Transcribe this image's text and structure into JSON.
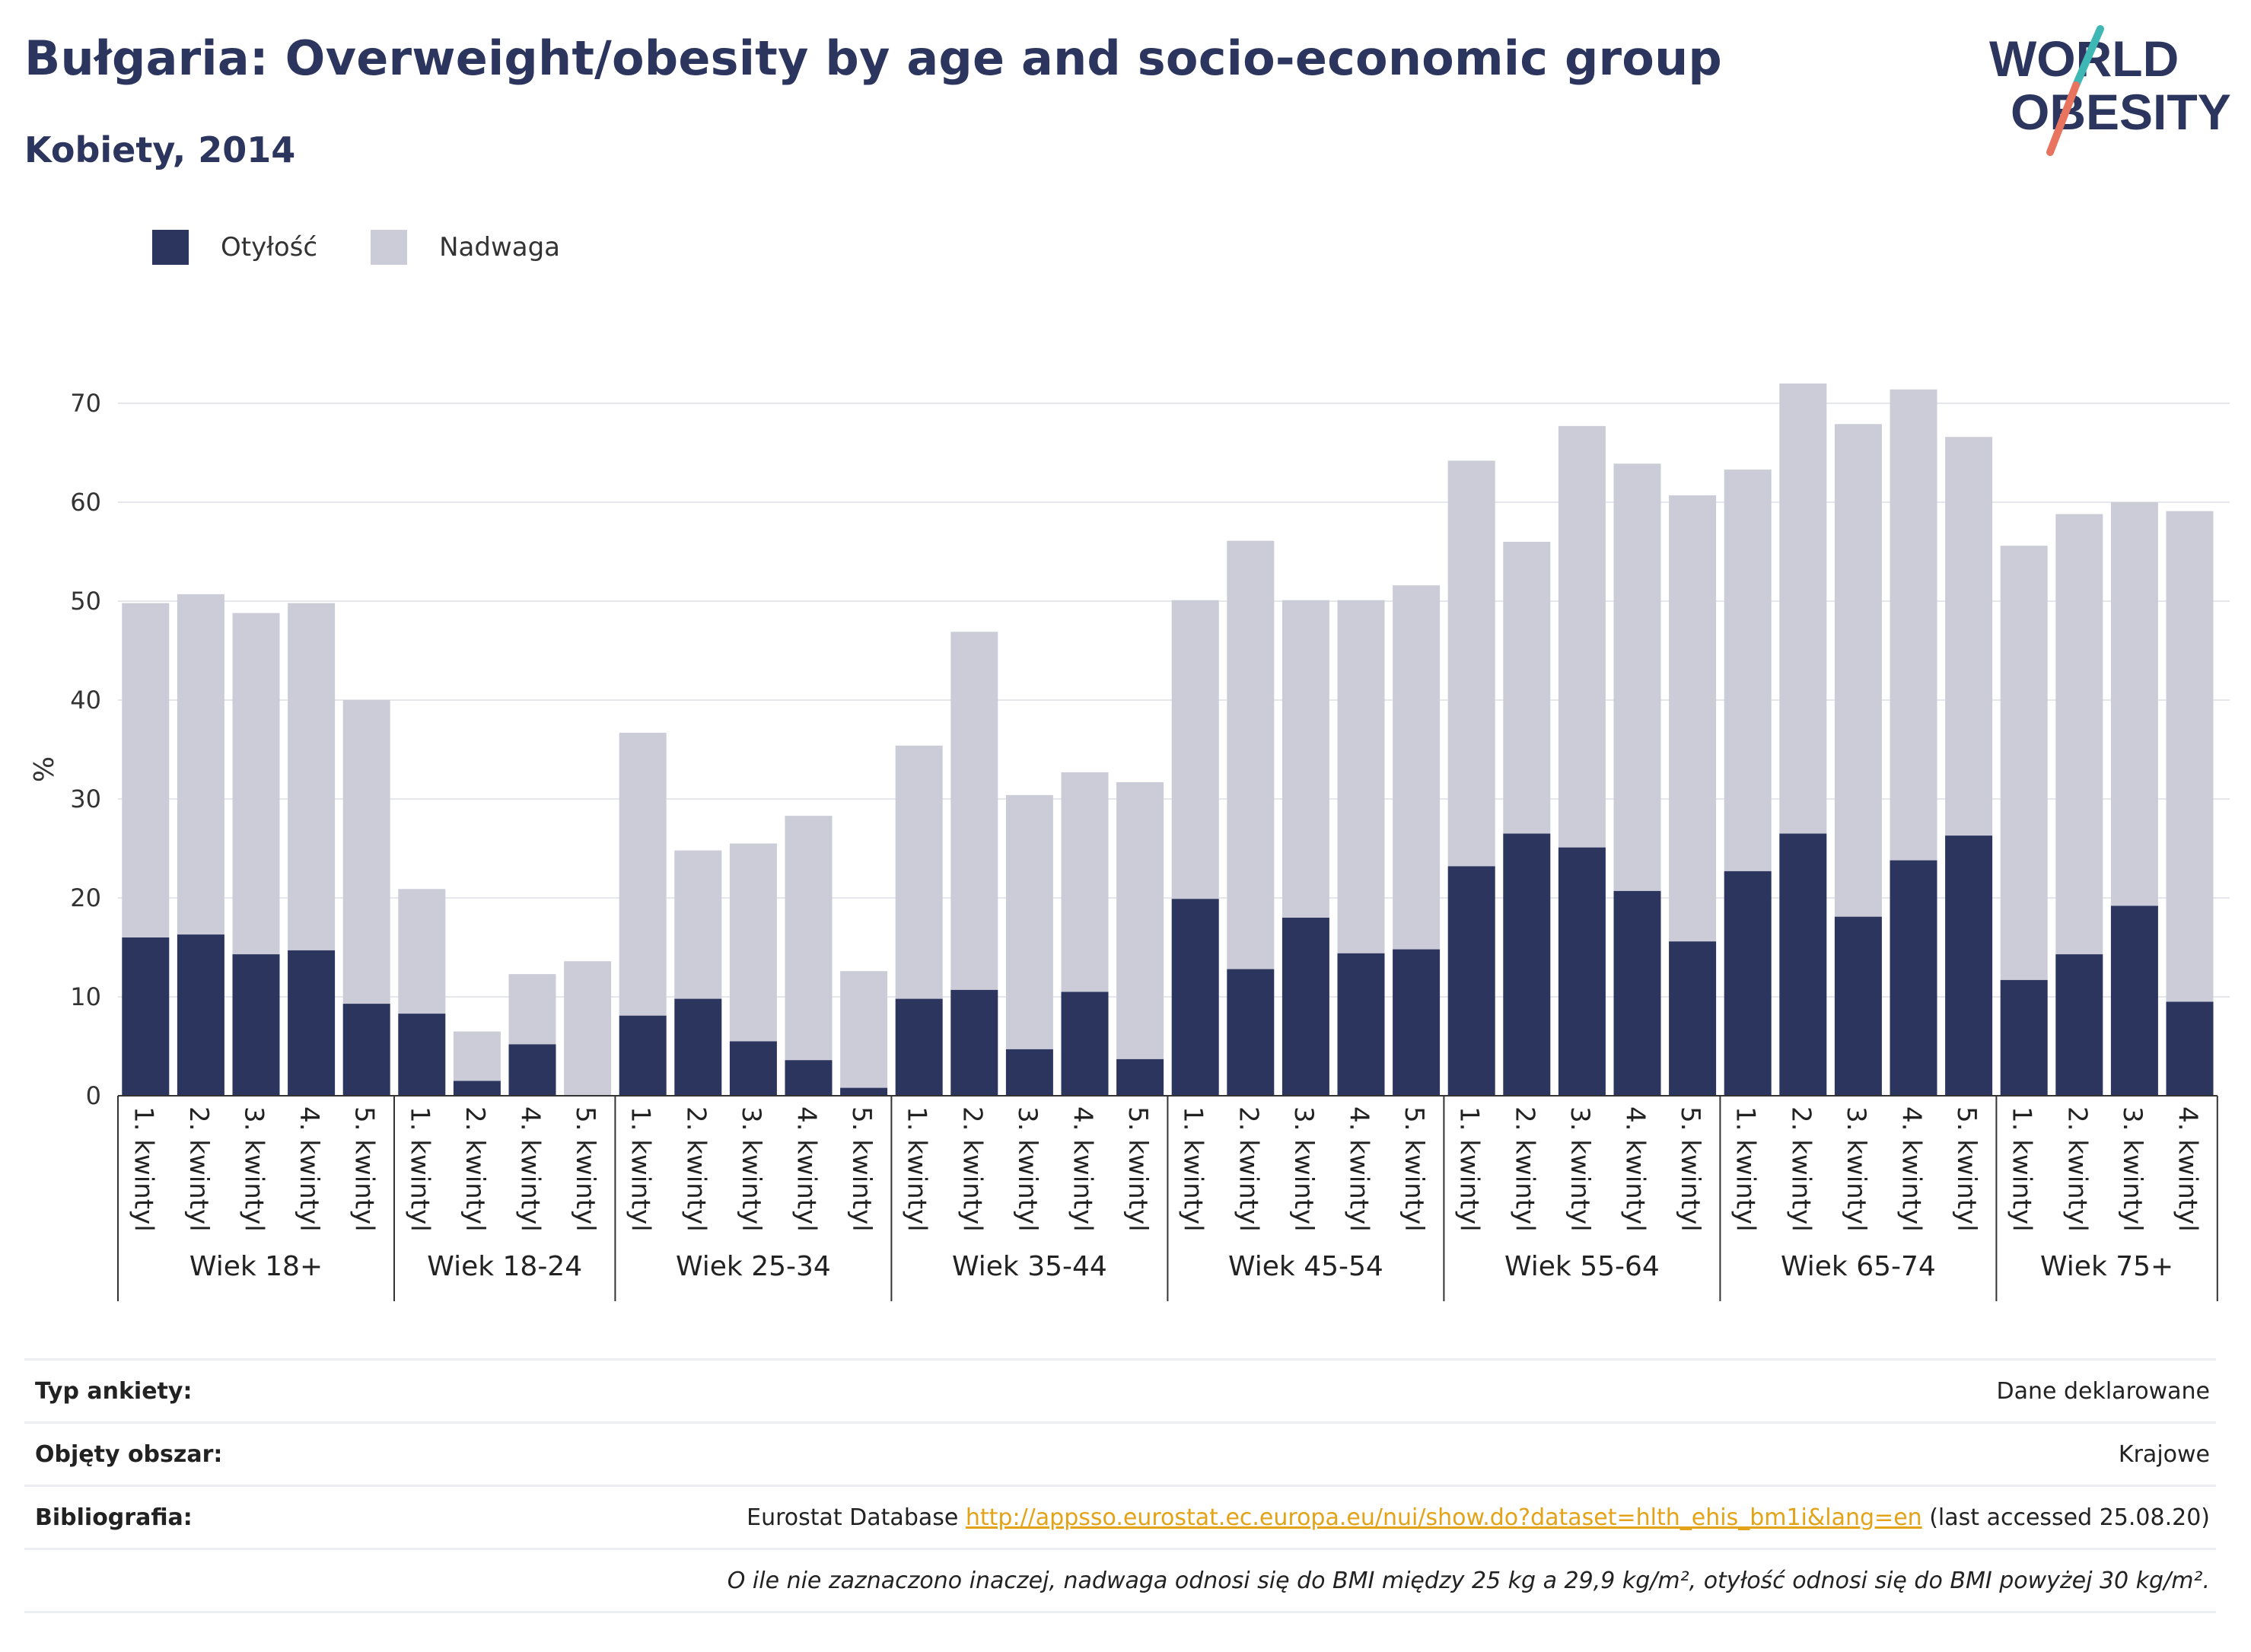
{
  "header": {
    "title": "Bułgaria: Overweight/obesity by age and socio-economic group",
    "subtitle": "Kobiety, 2014"
  },
  "logo": {
    "line1": "WORLD",
    "line2": "OBESITY"
  },
  "colors": {
    "obesity": "#2b355e",
    "overweight": "#cbccd7",
    "text": "#2b355e",
    "grid": "#e6e7ec",
    "link": "#e3a319",
    "logo_teal": "#3fb8b5",
    "logo_coral": "#e8735f"
  },
  "legend": {
    "items": [
      {
        "label": "Otyłość",
        "color": "#2b355e"
      },
      {
        "label": "Nadwaga",
        "color": "#cbccd7"
      }
    ]
  },
  "chart_data": {
    "type": "bar",
    "stacked": true,
    "ylabel": "%",
    "ylim": [
      0,
      75
    ],
    "yticks": [
      0,
      10,
      20,
      30,
      40,
      50,
      60,
      70
    ],
    "grid": true,
    "legend_position": "top-left",
    "groups": [
      {
        "label": "Wiek 18+",
        "categories": [
          "1. kwintyl",
          "2. kwintyl",
          "3. kwintyl",
          "4. kwintyl",
          "5. kwintyl"
        ],
        "obesity": [
          16.0,
          16.3,
          14.3,
          14.7,
          9.3
        ],
        "total": [
          49.8,
          50.7,
          48.8,
          49.8,
          40.0
        ]
      },
      {
        "label": "Wiek 18-24",
        "categories": [
          "1. kwintyl",
          "2. kwintyl",
          "4. kwintyl",
          "5. kwintyl"
        ],
        "obesity": [
          8.3,
          1.5,
          5.2,
          0.0
        ],
        "total": [
          20.9,
          6.5,
          12.3,
          13.6
        ]
      },
      {
        "label": "Wiek 25-34",
        "categories": [
          "1. kwintyl",
          "2. kwintyl",
          "3. kwintyl",
          "4. kwintyl",
          "5. kwintyl"
        ],
        "obesity": [
          8.1,
          9.8,
          5.5,
          3.6,
          0.8
        ],
        "total": [
          36.7,
          24.8,
          25.5,
          28.3,
          12.6
        ]
      },
      {
        "label": "Wiek 35-44",
        "categories": [
          "1. kwintyl",
          "2. kwintyl",
          "3. kwintyl",
          "4. kwintyl",
          "5. kwintyl"
        ],
        "obesity": [
          9.8,
          10.7,
          4.7,
          10.5,
          3.7
        ],
        "total": [
          35.4,
          46.9,
          30.4,
          32.7,
          31.7
        ]
      },
      {
        "label": "Wiek 45-54",
        "categories": [
          "1. kwintyl",
          "2. kwintyl",
          "3. kwintyl",
          "4. kwintyl",
          "5. kwintyl"
        ],
        "obesity": [
          19.9,
          12.8,
          18.0,
          14.4,
          14.8
        ],
        "total": [
          50.1,
          56.1,
          50.1,
          50.1,
          51.6
        ]
      },
      {
        "label": "Wiek 55-64",
        "categories": [
          "1. kwintyl",
          "2. kwintyl",
          "3. kwintyl",
          "4. kwintyl",
          "5. kwintyl"
        ],
        "obesity": [
          23.2,
          26.5,
          25.1,
          20.7,
          15.6
        ],
        "total": [
          64.2,
          56.0,
          67.7,
          63.9,
          60.7
        ]
      },
      {
        "label": "Wiek 65-74",
        "categories": [
          "1. kwintyl",
          "2. kwintyl",
          "3. kwintyl",
          "4. kwintyl",
          "5. kwintyl"
        ],
        "obesity": [
          22.7,
          26.5,
          18.1,
          23.8,
          26.3
        ],
        "total": [
          63.3,
          72.0,
          67.9,
          71.4,
          66.6
        ]
      },
      {
        "label": "Wiek 75+",
        "categories": [
          "1. kwintyl",
          "2. kwintyl",
          "3. kwintyl",
          "4. kwintyl"
        ],
        "obesity": [
          11.7,
          14.3,
          19.2,
          9.5
        ],
        "total": [
          55.6,
          58.8,
          60.0,
          59.1
        ]
      }
    ]
  },
  "meta": {
    "survey_type_key": "Typ ankiety:",
    "survey_type_val": "Dane deklarowane",
    "area_key": "Objęty obszar:",
    "area_val": "Krajowe",
    "biblio_key": "Bibliografia:",
    "biblio_source": "Eurostat Database",
    "biblio_link": "http://appsso.eurostat.ec.europa.eu/nui/show.do?dataset=hlth_ehis_bm1i&lang=en",
    "biblio_accessed": "(last accessed 25.08.20)",
    "note": "O ile nie zaznaczono inaczej, nadwaga odnosi się do BMI między 25 kg a 29,9 kg/m², otyłość odnosi się do BMI powyżej 30 kg/m²."
  }
}
